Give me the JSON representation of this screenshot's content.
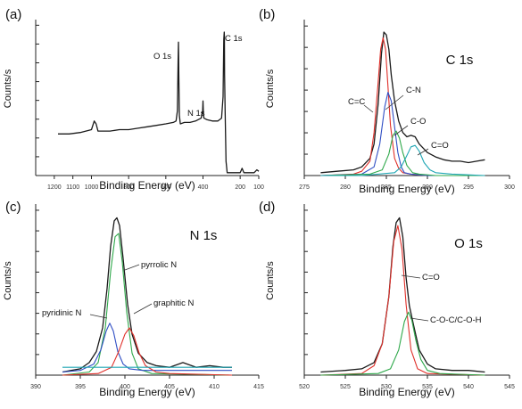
{
  "chart_data": [
    {
      "panel": "(a)",
      "type": "line",
      "xlabel": "Binding Energy (eV)",
      "ylabel": "Counts/s",
      "xlim": [
        1300,
        100
      ],
      "x_ticks": [
        1200,
        1100,
        1000,
        800,
        600,
        400,
        200,
        100
      ],
      "x_tick_labels": [
        "1200",
        "1100",
        "1000",
        "800",
        "600",
        "400",
        "200",
        "100"
      ],
      "y_ticks": 8,
      "peaks": [
        {
          "label": "O 1s",
          "x": 532
        },
        {
          "label": "N 1s",
          "x": 400
        },
        {
          "label": "C 1s",
          "x": 285
        }
      ],
      "series": [
        {
          "color": "#1a1a1a",
          "x": [
            1180,
            1120,
            1060,
            1000,
            985,
            975,
            965,
            950,
            900,
            850,
            800,
            750,
            700,
            650,
            600,
            560,
            545,
            538,
            534,
            532,
            530,
            527,
            522,
            500,
            470,
            440,
            410,
            402,
            400,
            398,
            395,
            380,
            350,
            320,
            300,
            292,
            288,
            286,
            285,
            284,
            281,
            276,
            270,
            230,
            200,
            190,
            180,
            160,
            140,
            125,
            110,
            100
          ],
          "y": [
            0.29,
            0.29,
            0.3,
            0.32,
            0.38,
            0.36,
            0.31,
            0.31,
            0.31,
            0.32,
            0.32,
            0.33,
            0.34,
            0.35,
            0.36,
            0.37,
            0.38,
            0.45,
            0.8,
            0.93,
            0.7,
            0.42,
            0.36,
            0.37,
            0.37,
            0.38,
            0.4,
            0.45,
            0.52,
            0.44,
            0.4,
            0.39,
            0.38,
            0.38,
            0.4,
            0.55,
            0.95,
            1.0,
            0.97,
            0.7,
            0.45,
            0.1,
            0.02,
            0.02,
            0.02,
            0.05,
            0.02,
            0.02,
            0.02,
            0.02,
            0.04,
            0.03
          ]
        }
      ]
    },
    {
      "panel": "(b)",
      "type": "line",
      "title": "C 1s",
      "xlabel": "Binding Energy (eV)",
      "ylabel": "Counts/s",
      "xlim": [
        275,
        300
      ],
      "x_ticks": [
        275,
        280,
        285,
        290,
        295,
        300
      ],
      "y_ticks": 7,
      "annotations": [
        "C=C",
        "C-N",
        "C-O",
        "C=O"
      ],
      "series": [
        {
          "color": "#1a1a1a",
          "x": [
            277,
            279,
            281,
            282,
            283,
            283.5,
            284,
            284.4,
            284.7,
            285,
            285.3,
            285.6,
            286,
            286.5,
            287,
            287.5,
            288,
            288.5,
            289,
            290,
            291,
            292,
            293,
            294,
            295,
            296,
            297
          ],
          "y": [
            0.02,
            0.03,
            0.04,
            0.06,
            0.12,
            0.22,
            0.5,
            0.85,
            1.0,
            0.98,
            0.88,
            0.7,
            0.52,
            0.38,
            0.3,
            0.27,
            0.28,
            0.27,
            0.22,
            0.16,
            0.13,
            0.11,
            0.1,
            0.1,
            0.09,
            0.1,
            0.11
          ]
        },
        {
          "color": "#e0302a",
          "x": [
            277,
            281,
            282,
            283,
            283.5,
            284,
            284.3,
            284.6,
            284.9,
            285.2,
            285.5,
            286,
            286.5,
            287,
            288,
            290,
            293,
            297
          ],
          "y": [
            0.0,
            0.01,
            0.03,
            0.1,
            0.3,
            0.65,
            0.88,
            0.96,
            0.88,
            0.62,
            0.35,
            0.12,
            0.05,
            0.02,
            0.01,
            0.0,
            0.0,
            0.0
          ]
        },
        {
          "color": "#2f4ec4",
          "x": [
            277,
            282,
            283.5,
            284.2,
            284.8,
            285.2,
            285.6,
            286,
            286.4,
            286.8,
            287.2,
            288,
            290,
            297
          ],
          "y": [
            0.0,
            0.01,
            0.06,
            0.22,
            0.48,
            0.58,
            0.52,
            0.34,
            0.16,
            0.06,
            0.02,
            0.01,
            0.0,
            0.0
          ]
        },
        {
          "color": "#2ea84a",
          "x": [
            277,
            283,
            284.5,
            285.3,
            285.8,
            286.2,
            286.6,
            287,
            287.5,
            288.2,
            289,
            291,
            297
          ],
          "y": [
            0.0,
            0.01,
            0.04,
            0.15,
            0.28,
            0.31,
            0.26,
            0.16,
            0.07,
            0.02,
            0.01,
            0.0,
            0.0
          ]
        },
        {
          "color": "#1fa6b4",
          "x": [
            277,
            282,
            286,
            286.8,
            287.5,
            288,
            288.5,
            289,
            289.6,
            290.3,
            291,
            293,
            297
          ],
          "y": [
            0.0,
            0.0,
            0.02,
            0.06,
            0.14,
            0.2,
            0.21,
            0.17,
            0.09,
            0.04,
            0.02,
            0.01,
            0.0
          ]
        }
      ]
    },
    {
      "panel": "(c)",
      "type": "line",
      "title": "N 1s",
      "xlabel": "Binding Energy (eV)",
      "ylabel": "Counts/s",
      "xlim": [
        390,
        415
      ],
      "x_ticks": [
        390,
        395,
        400,
        405,
        410,
        415
      ],
      "y_ticks": 8,
      "annotations": [
        "pyrrolic N",
        "pyridinic N",
        "graphitic N"
      ],
      "series": [
        {
          "color": "#1a1a1a",
          "x": [
            393,
            394,
            395,
            396,
            396.8,
            397.5,
            398,
            398.4,
            398.8,
            399.1,
            399.4,
            399.8,
            400.3,
            400.8,
            401.5,
            402.5,
            403.5,
            405,
            406.5,
            408,
            409.5,
            411,
            412
          ],
          "y": [
            0.02,
            0.03,
            0.04,
            0.08,
            0.15,
            0.3,
            0.55,
            0.82,
            0.98,
            1.0,
            0.95,
            0.74,
            0.45,
            0.26,
            0.14,
            0.08,
            0.06,
            0.05,
            0.08,
            0.05,
            0.06,
            0.05,
            0.05
          ]
        },
        {
          "color": "#2ea84a",
          "x": [
            393,
            396,
            397,
            397.8,
            398.4,
            398.9,
            399.3,
            399.7,
            400.2,
            400.8,
            401.5,
            403,
            412
          ],
          "y": [
            0.0,
            0.02,
            0.08,
            0.3,
            0.66,
            0.88,
            0.9,
            0.72,
            0.4,
            0.14,
            0.04,
            0.01,
            0.0
          ]
        },
        {
          "color": "#2f4ec4",
          "x": [
            393,
            395,
            396.5,
            397.3,
            397.9,
            398.3,
            398.7,
            399.2,
            399.8,
            400.5,
            402,
            412
          ],
          "y": [
            0.02,
            0.03,
            0.07,
            0.16,
            0.28,
            0.33,
            0.28,
            0.15,
            0.07,
            0.04,
            0.03,
            0.03
          ]
        },
        {
          "color": "#e0302a",
          "x": [
            393,
            397,
            398.5,
            399.3,
            400,
            400.5,
            401,
            401.6,
            402.3,
            403.5,
            405,
            412
          ],
          "y": [
            0.0,
            0.01,
            0.05,
            0.15,
            0.26,
            0.3,
            0.25,
            0.14,
            0.06,
            0.02,
            0.01,
            0.0
          ]
        },
        {
          "color": "#1fa6b4",
          "x": [
            393,
            397,
            401,
            404,
            407,
            410,
            412
          ],
          "y": [
            0.05,
            0.05,
            0.05,
            0.05,
            0.05,
            0.05,
            0.05
          ]
        }
      ]
    },
    {
      "panel": "(d)",
      "type": "line",
      "title": "O 1s",
      "xlabel": "Binding Energy (eV)",
      "ylabel": "Counts/s",
      "xlim": [
        520,
        545
      ],
      "x_ticks": [
        520,
        525,
        530,
        535,
        540,
        545
      ],
      "y_ticks": 8,
      "annotations": [
        "C=O",
        "C-O-C/C-O-H"
      ],
      "series": [
        {
          "color": "#1a1a1a",
          "x": [
            522,
            525,
            527,
            528.5,
            529.5,
            530.3,
            530.8,
            531.2,
            531.6,
            532,
            532.4,
            532.8,
            533.3,
            534,
            535,
            536,
            538,
            540,
            542
          ],
          "y": [
            0.02,
            0.03,
            0.04,
            0.08,
            0.2,
            0.5,
            0.82,
            0.97,
            1.0,
            0.88,
            0.62,
            0.44,
            0.32,
            0.16,
            0.07,
            0.04,
            0.03,
            0.03,
            0.02
          ]
        },
        {
          "color": "#e0302a",
          "x": [
            522,
            527,
            528.5,
            529.5,
            530.3,
            530.9,
            531.4,
            531.9,
            532.4,
            533,
            533.8,
            535,
            542
          ],
          "y": [
            0.0,
            0.01,
            0.06,
            0.2,
            0.5,
            0.85,
            0.95,
            0.8,
            0.45,
            0.16,
            0.04,
            0.01,
            0.0
          ]
        },
        {
          "color": "#2ea84a",
          "x": [
            522,
            529,
            530.5,
            531.5,
            532.2,
            532.7,
            533.1,
            533.6,
            534.2,
            535,
            536.5,
            542
          ],
          "y": [
            0.0,
            0.01,
            0.04,
            0.16,
            0.34,
            0.4,
            0.35,
            0.22,
            0.1,
            0.03,
            0.01,
            0.0
          ]
        }
      ]
    }
  ]
}
